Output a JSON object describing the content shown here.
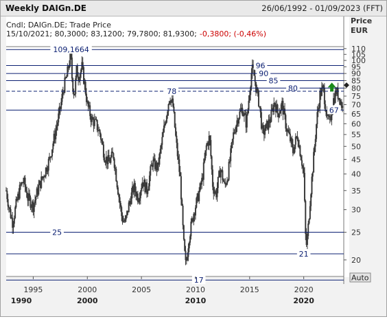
{
  "window": {
    "title": "Weekly DAIGn.DE",
    "date_range": "26/06/1992 - 01/09/2023 (FFT)"
  },
  "info": {
    "line1": "Cndl; DAIGn.DE; Trade Price",
    "line2_prefix": "15/10/2021; 80,3000; 83,1200; 79,7800; 81,9300;",
    "line2_change": "-0,3800; (-0,46%)",
    "change_color": "#cc0000"
  },
  "price_axis": {
    "title": "Price",
    "unit": "EUR",
    "auto_label": "Auto"
  },
  "colors": {
    "candles": "#3a3a3a",
    "levels": "#0b1f72",
    "arrow": "#1a8a1a"
  },
  "icons": {
    "up_arrow": "up-arrow-icon",
    "diamond": "diamond-icon"
  },
  "chart_data": {
    "type": "candlestick",
    "scale": "log",
    "xlim": [
      1992.5,
      2023.7
    ],
    "ylim": [
      17.5,
      113
    ],
    "y_ticks": [
      20,
      25,
      30,
      35,
      40,
      45,
      50,
      55,
      60,
      65,
      70,
      75,
      80,
      85,
      90,
      95,
      100,
      105,
      110
    ],
    "x_ticks_minor": [
      {
        "x": 1995,
        "label": "1995"
      },
      {
        "x": 2000,
        "label": "2000"
      },
      {
        "x": 2005,
        "label": "2005"
      },
      {
        "x": 2010,
        "label": "2010"
      },
      {
        "x": 2015,
        "label": "2015"
      },
      {
        "x": 2020,
        "label": "2020"
      }
    ],
    "x_ticks_major": [
      {
        "x": 1990,
        "label": "1990"
      },
      {
        "x": 2000,
        "label": "2000"
      },
      {
        "x": 2010,
        "label": "2010"
      },
      {
        "x": 2020,
        "label": "2020"
      }
    ],
    "levels": [
      {
        "value": 109.1664,
        "label": "109,1664",
        "x_start": 1992.5,
        "x_end": 2023.7,
        "label_x": 1998.5,
        "dashed": false
      },
      {
        "value": 96,
        "label": "96",
        "x_start": 1992.5,
        "x_end": 2023.7,
        "label_x": 2016.0,
        "dashed": false
      },
      {
        "value": 90,
        "label": "90",
        "x_start": 1992.5,
        "x_end": 2023.7,
        "label_x": 2016.3,
        "dashed": false
      },
      {
        "value": 85,
        "label": "85",
        "x_start": 1992.5,
        "x_end": 2023.7,
        "label_x": 2017.2,
        "dashed": false
      },
      {
        "value": 80,
        "label": "80",
        "x_start": 2008.0,
        "x_end": 2023.7,
        "label_x": 2019.0,
        "dashed": false
      },
      {
        "value": 78,
        "label": "78",
        "x_start": 1992.5,
        "x_end": 2023.7,
        "label_x": 2007.8,
        "dashed": true
      },
      {
        "value": 67,
        "label": "67",
        "x_start": 1992.5,
        "x_end": 2023.7,
        "label_x": 2022.8,
        "dashed": false
      },
      {
        "value": 25,
        "label": "25",
        "x_start": 1992.5,
        "x_end": 2023.7,
        "label_x": 1997.2,
        "dashed": false
      },
      {
        "value": 21,
        "label": "21",
        "x_start": 1992.5,
        "x_end": 2023.7,
        "label_x": 2020.0,
        "dashed": false
      },
      {
        "value": 17,
        "label": "17",
        "x_start": 1992.5,
        "x_end": 2023.7,
        "label_x": 2010.3,
        "dashed": false
      }
    ],
    "series": [
      {
        "anchors": [
          [
            1992.5,
            35
          ],
          [
            1992.8,
            30
          ],
          [
            1993.1,
            27
          ],
          [
            1993.4,
            31
          ],
          [
            1993.8,
            36
          ],
          [
            1994.1,
            38
          ],
          [
            1994.5,
            33
          ],
          [
            1995.0,
            31
          ],
          [
            1995.5,
            36
          ],
          [
            1996.0,
            40
          ],
          [
            1996.5,
            45
          ],
          [
            1997.0,
            55
          ],
          [
            1997.5,
            68
          ],
          [
            1997.8,
            80
          ],
          [
            1998.1,
            88
          ],
          [
            1998.35,
            100
          ],
          [
            1998.45,
            107
          ],
          [
            1998.6,
            85
          ],
          [
            1998.8,
            75
          ],
          [
            1999.0,
            92
          ],
          [
            1999.2,
            88
          ],
          [
            1999.5,
            95
          ],
          [
            1999.8,
            80
          ],
          [
            2000.0,
            70
          ],
          [
            2000.4,
            62
          ],
          [
            2000.8,
            60
          ],
          [
            2001.2,
            55
          ],
          [
            2001.6,
            46
          ],
          [
            2002.0,
            44
          ],
          [
            2002.4,
            47
          ],
          [
            2002.8,
            36
          ],
          [
            2003.2,
            28
          ],
          [
            2003.5,
            27
          ],
          [
            2003.9,
            32
          ],
          [
            2004.3,
            36
          ],
          [
            2004.7,
            33
          ],
          [
            2005.1,
            38
          ],
          [
            2005.5,
            35
          ],
          [
            2006.0,
            44
          ],
          [
            2006.5,
            42
          ],
          [
            2007.0,
            55
          ],
          [
            2007.4,
            68
          ],
          [
            2007.6,
            75
          ],
          [
            2007.9,
            70
          ],
          [
            2008.2,
            52
          ],
          [
            2008.6,
            38
          ],
          [
            2008.9,
            23
          ],
          [
            2009.1,
            19
          ],
          [
            2009.4,
            24
          ],
          [
            2009.8,
            29
          ],
          [
            2010.2,
            33
          ],
          [
            2010.6,
            38
          ],
          [
            2011.0,
            50
          ],
          [
            2011.3,
            54
          ],
          [
            2011.6,
            36
          ],
          [
            2011.9,
            34
          ],
          [
            2012.3,
            42
          ],
          [
            2012.7,
            36
          ],
          [
            2013.0,
            40
          ],
          [
            2013.5,
            55
          ],
          [
            2013.9,
            63
          ],
          [
            2014.3,
            68
          ],
          [
            2014.7,
            60
          ],
          [
            2014.95,
            75
          ],
          [
            2015.15,
            90
          ],
          [
            2015.3,
            94
          ],
          [
            2015.6,
            80
          ],
          [
            2015.9,
            70
          ],
          [
            2016.2,
            55
          ],
          [
            2016.5,
            58
          ],
          [
            2016.9,
            62
          ],
          [
            2017.3,
            72
          ],
          [
            2017.6,
            65
          ],
          [
            2018.0,
            70
          ],
          [
            2018.4,
            58
          ],
          [
            2018.8,
            52
          ],
          [
            2019.0,
            48
          ],
          [
            2019.4,
            55
          ],
          [
            2019.8,
            45
          ],
          [
            2020.0,
            40
          ],
          [
            2020.2,
            22
          ],
          [
            2020.35,
            24
          ],
          [
            2020.6,
            33
          ],
          [
            2020.9,
            45
          ],
          [
            2021.2,
            62
          ],
          [
            2021.5,
            76
          ],
          [
            2021.8,
            80
          ],
          [
            2022.1,
            65
          ],
          [
            2022.4,
            60
          ],
          [
            2022.7,
            72
          ],
          [
            2023.0,
            78
          ],
          [
            2023.3,
            74
          ],
          [
            2023.6,
            68
          ]
        ],
        "last": 81.93
      }
    ]
  }
}
